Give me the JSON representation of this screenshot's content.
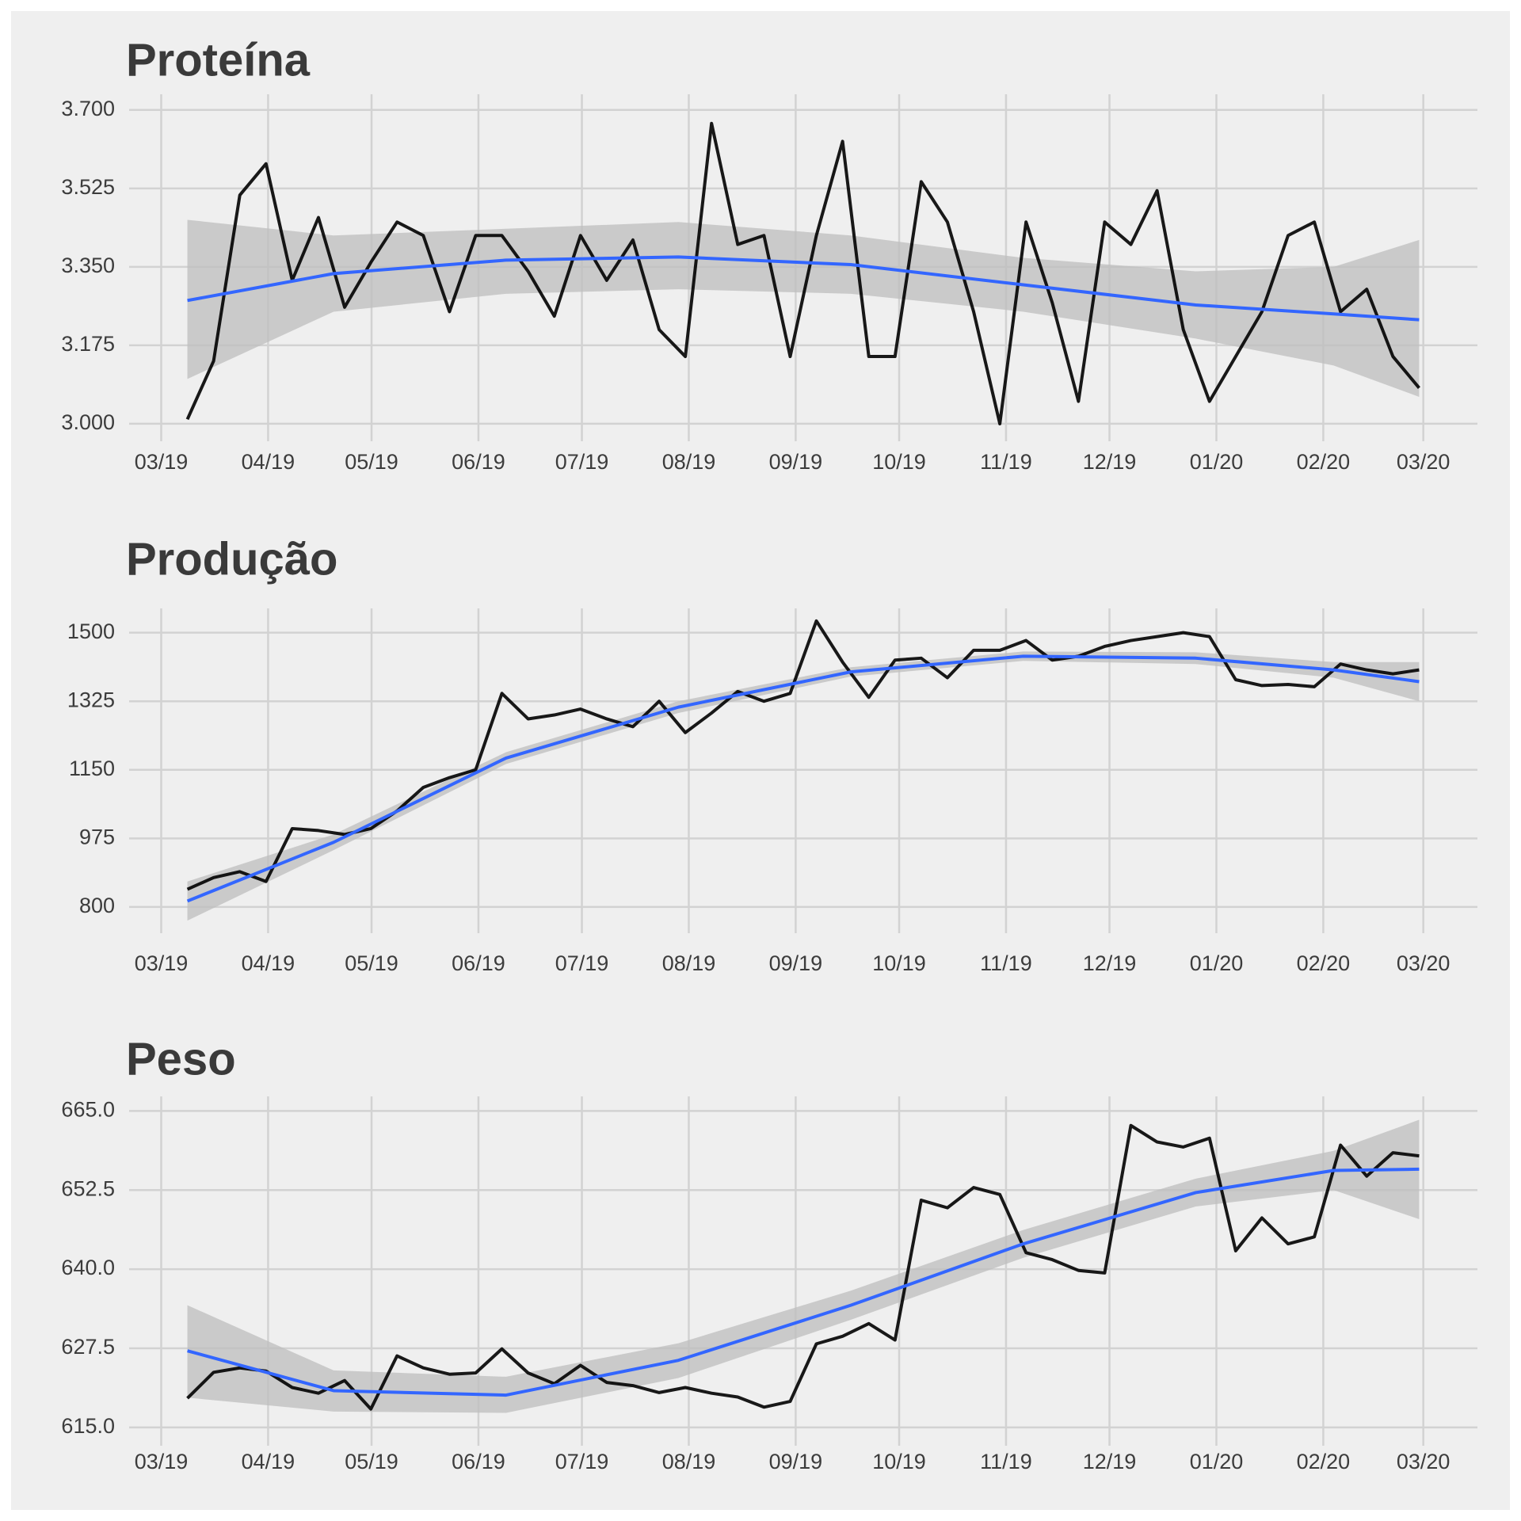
{
  "chart_data": [
    {
      "type": "line",
      "title": "Proteína",
      "grid": true,
      "xlim": [
        -9.3,
        381.7
      ],
      "ylim": [
        2.961,
        3.735
      ],
      "xticks": [
        {
          "value": 0,
          "label": "03/19"
        },
        {
          "value": 31,
          "label": "04/19"
        },
        {
          "value": 61,
          "label": "05/19"
        },
        {
          "value": 92,
          "label": "06/19"
        },
        {
          "value": 122,
          "label": "07/19"
        },
        {
          "value": 153,
          "label": "08/19"
        },
        {
          "value": 184,
          "label": "09/19"
        },
        {
          "value": 214,
          "label": "10/19"
        },
        {
          "value": 245,
          "label": "11/19"
        },
        {
          "value": 275,
          "label": "12/19"
        },
        {
          "value": 306,
          "label": "01/20"
        },
        {
          "value": 337,
          "label": "02/20"
        },
        {
          "value": 366,
          "label": "03/20"
        }
      ],
      "yticks": [
        {
          "value": 3,
          "label": "3.000"
        },
        3.175,
        {
          "value": 3.35,
          "label": "3.350"
        },
        3.525,
        {
          "value": 3.7,
          "label": "3.700"
        }
      ],
      "x": [
        7.6,
        15.2,
        22.8,
        30.4,
        38,
        45.6,
        53.2,
        60.8,
        68.4,
        76,
        83.6,
        91.2,
        98.8,
        106.4,
        114,
        121.6,
        129.2,
        136.8,
        144.4,
        152,
        159.6,
        167.2,
        174.8,
        182.4,
        190,
        197.6,
        205.2,
        212.8,
        220.4,
        228,
        235.6,
        243.2,
        250.8,
        258.4,
        266,
        273.6,
        281.2,
        288.8,
        296.4,
        304,
        311.6,
        319.2,
        326.8,
        334.4,
        342,
        349.6,
        357.2,
        364.8
      ],
      "series": [
        {
          "color": "#000000",
          "values": [
            3.01,
            3.14,
            3.51,
            3.58,
            3.32,
            3.46,
            3.26,
            3.36,
            3.45,
            3.42,
            3.25,
            3.42,
            3.42,
            3.34,
            3.24,
            3.42,
            3.32,
            3.41,
            3.21,
            3.15,
            3.67,
            3.4,
            3.42,
            3.15,
            3.42,
            3.63,
            3.15,
            3.15,
            3.54,
            3.45,
            3.25,
            3.0,
            3.45,
            3.27,
            3.05,
            3.45,
            3.4,
            3.52,
            3.21,
            3.05,
            3.15,
            3.25,
            3.42,
            3.45,
            3.25,
            3.3,
            3.15,
            3.08
          ]
        },
        {
          "color": "#3366ff",
          "band_color": "#bdbdbd",
          "x": [
            7.6,
            50,
            100,
            150,
            200,
            250,
            300,
            340,
            364.8
          ],
          "values": [
            3.275,
            3.335,
            3.365,
            3.372,
            3.355,
            3.31,
            3.265,
            3.245,
            3.232
          ],
          "lower": [
            3.1,
            3.25,
            3.29,
            3.3,
            3.29,
            3.25,
            3.19,
            3.13,
            3.06
          ],
          "upper": [
            3.455,
            3.42,
            3.435,
            3.45,
            3.42,
            3.37,
            3.34,
            3.35,
            3.41
          ]
        }
      ]
    },
    {
      "type": "line",
      "title": "Produção",
      "grid": true,
      "xlim": [
        -9.3,
        381.7
      ],
      "ylim": [
        733,
        1562
      ],
      "xticks": [
        {
          "value": 0,
          "label": "03/19"
        },
        {
          "value": 31,
          "label": "04/19"
        },
        {
          "value": 61,
          "label": "05/19"
        },
        {
          "value": 92,
          "label": "06/19"
        },
        {
          "value": 122,
          "label": "07/19"
        },
        {
          "value": 153,
          "label": "08/19"
        },
        {
          "value": 184,
          "label": "09/19"
        },
        {
          "value": 214,
          "label": "10/19"
        },
        {
          "value": 245,
          "label": "11/19"
        },
        {
          "value": 275,
          "label": "12/19"
        },
        {
          "value": 306,
          "label": "01/20"
        },
        {
          "value": 337,
          "label": "02/20"
        },
        {
          "value": 366,
          "label": "03/20"
        }
      ],
      "yticks": [
        800,
        975,
        1150,
        1325,
        1500
      ],
      "x": [
        7.6,
        15.2,
        22.8,
        30.4,
        38,
        45.6,
        53.2,
        60.8,
        68.4,
        76,
        83.6,
        91.2,
        98.8,
        106.4,
        114,
        121.6,
        129.2,
        136.8,
        144.4,
        152,
        159.6,
        167.2,
        174.8,
        182.4,
        190,
        197.6,
        205.2,
        212.8,
        220.4,
        228,
        235.6,
        243.2,
        250.8,
        258.4,
        266,
        273.6,
        281.2,
        288.8,
        296.4,
        304,
        311.6,
        319.2,
        326.8,
        334.4,
        342,
        349.6,
        357.2,
        364.8
      ],
      "series": [
        {
          "color": "#000000",
          "values": [
            845,
            875,
            890,
            865,
            1000,
            995,
            985,
            1000,
            1045,
            1105,
            1130,
            1150,
            1345,
            1280,
            1290,
            1305,
            1280,
            1260,
            1325,
            1245,
            1295,
            1350,
            1325,
            1345,
            1530,
            1425,
            1335,
            1430,
            1435,
            1385,
            1455,
            1455,
            1480,
            1430,
            1440,
            1465,
            1480,
            1490,
            1500,
            1490,
            1380,
            1365,
            1368,
            1362,
            1420,
            1405,
            1395,
            1405
          ]
        },
        {
          "color": "#3366ff",
          "band_color": "#bdbdbd",
          "x": [
            7.6,
            50,
            100,
            150,
            200,
            250,
            300,
            340,
            364.8
          ],
          "values": [
            815,
            965,
            1180,
            1310,
            1400,
            1440,
            1435,
            1405,
            1375
          ],
          "lower": [
            765,
            945,
            1165,
            1295,
            1388,
            1428,
            1420,
            1385,
            1325
          ],
          "upper": [
            865,
            985,
            1195,
            1325,
            1412,
            1452,
            1450,
            1425,
            1425
          ]
        }
      ]
    },
    {
      "type": "line",
      "title": "Peso",
      "grid": true,
      "xlim": [
        -9.3,
        381.7
      ],
      "ylim": [
        612.1,
        667.3
      ],
      "xticks": [
        {
          "value": 0,
          "label": "03/19"
        },
        {
          "value": 31,
          "label": "04/19"
        },
        {
          "value": 61,
          "label": "05/19"
        },
        {
          "value": 92,
          "label": "06/19"
        },
        {
          "value": 122,
          "label": "07/19"
        },
        {
          "value": 153,
          "label": "08/19"
        },
        {
          "value": 184,
          "label": "09/19"
        },
        {
          "value": 214,
          "label": "10/19"
        },
        {
          "value": 245,
          "label": "11/19"
        },
        {
          "value": 275,
          "label": "12/19"
        },
        {
          "value": 306,
          "label": "01/20"
        },
        {
          "value": 337,
          "label": "02/20"
        },
        {
          "value": 366,
          "label": "03/20"
        }
      ],
      "yticks": [
        {
          "value": 615,
          "label": "615.0"
        },
        627.5,
        {
          "value": 640,
          "label": "640.0"
        },
        652.5,
        {
          "value": 665,
          "label": "665.0"
        }
      ],
      "x": [
        7.6,
        15.2,
        22.8,
        30.4,
        38,
        45.6,
        53.2,
        60.8,
        68.4,
        76,
        83.6,
        91.2,
        98.8,
        106.4,
        114,
        121.6,
        129.2,
        136.8,
        144.4,
        152,
        159.6,
        167.2,
        174.8,
        182.4,
        190,
        197.6,
        205.2,
        212.8,
        220.4,
        228,
        235.6,
        243.2,
        250.8,
        258.4,
        266,
        273.6,
        281.2,
        288.8,
        296.4,
        304,
        311.6,
        319.2,
        326.8,
        334.4,
        342,
        349.6,
        357.2,
        364.8
      ],
      "series": [
        {
          "color": "#000000",
          "values": [
            619.6,
            623.7,
            624.4,
            623.9,
            621.3,
            620.4,
            622.4,
            617.9,
            626.3,
            624.4,
            623.4,
            623.6,
            627.4,
            623.6,
            621.9,
            624.8,
            622.1,
            621.6,
            620.5,
            621.3,
            620.4,
            619.8,
            618.2,
            619.1,
            628.2,
            629.4,
            631.4,
            628.8,
            650.9,
            649.7,
            652.9,
            651.8,
            642.6,
            641.5,
            639.8,
            639.4,
            662.7,
            660.1,
            659.3,
            660.7,
            642.9,
            648.1,
            644.0,
            645.1,
            659.6,
            654.7,
            658.4,
            657.9
          ]
        },
        {
          "color": "#3366ff",
          "band_color": "#bdbdbd",
          "x": [
            7.6,
            50,
            100,
            150,
            200,
            250,
            300,
            340,
            364.8
          ],
          "values": [
            627.1,
            620.8,
            620.1,
            625.6,
            634.3,
            644.0,
            652.1,
            655.6,
            655.8
          ],
          "lower": [
            619.7,
            617.5,
            617.3,
            622.8,
            632,
            641.8,
            649.9,
            652.5,
            647.9
          ],
          "upper": [
            634.3,
            624,
            623,
            628.3,
            636.6,
            646.2,
            654.3,
            658.7,
            663.6
          ]
        }
      ]
    }
  ]
}
